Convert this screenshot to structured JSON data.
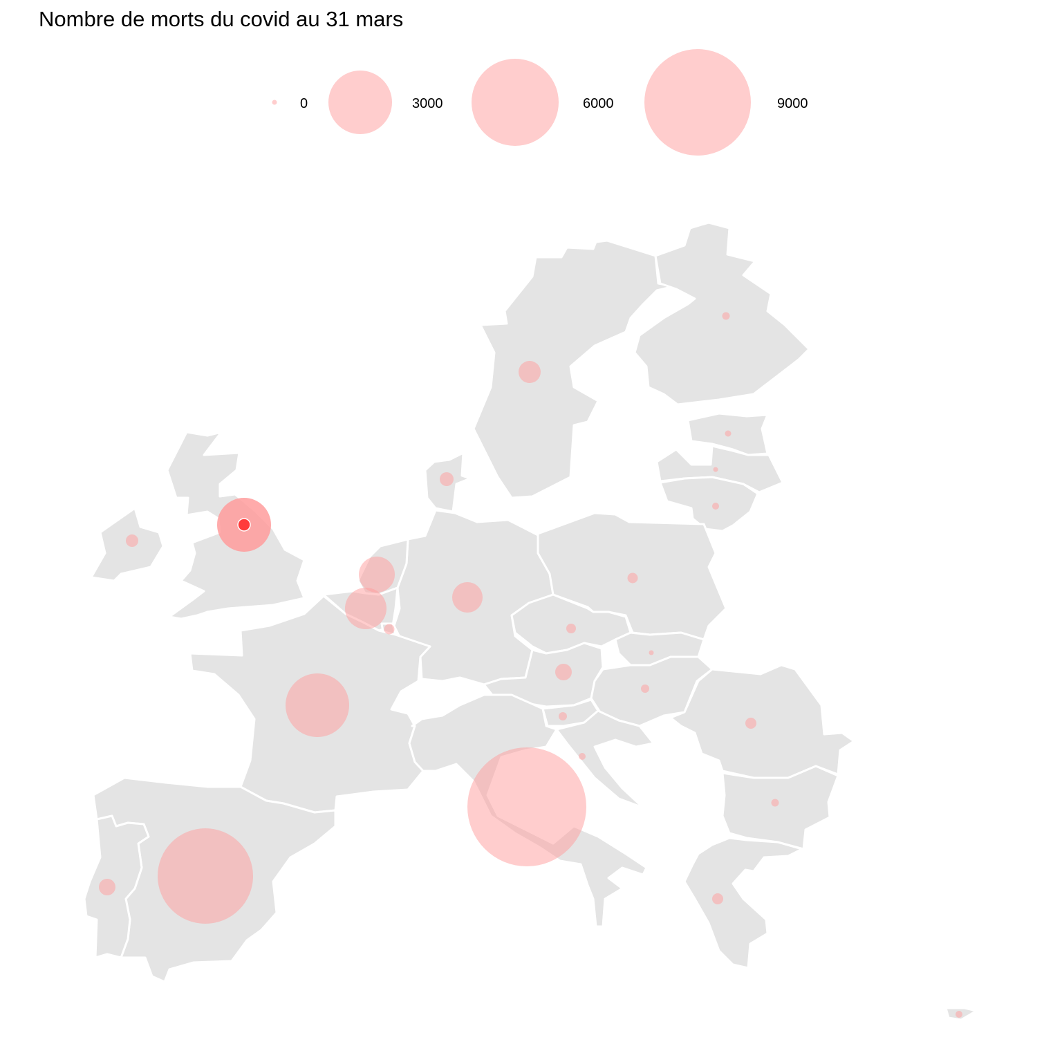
{
  "title": "Nombre de morts du covid au 31 mars",
  "colors": {
    "land": "#e4e4e4",
    "borders": "#ffffff",
    "bubble": "#ff9c9c",
    "legend_bubble": "#ffcdcd",
    "highlight": "#ff3b3b"
  },
  "legend": {
    "items": [
      {
        "value": 0,
        "label": "0"
      },
      {
        "value": 3000,
        "label": "3000"
      },
      {
        "value": 6000,
        "label": "6000"
      },
      {
        "value": 9000,
        "label": "9000"
      }
    ]
  },
  "countries": [
    {
      "name": "Italy",
      "deaths": 11600
    },
    {
      "name": "Spain",
      "deaths": 7716
    },
    {
      "name": "France",
      "deaths": 3523
    },
    {
      "name": "United Kingdom",
      "deaths": 2352
    },
    {
      "name": "Netherlands",
      "deaths": 1039
    },
    {
      "name": "Belgium",
      "deaths": 705
    },
    {
      "name": "Germany",
      "deaths": 775
    },
    {
      "name": "Sweden",
      "deaths": 180
    },
    {
      "name": "Ireland",
      "deaths": 71
    },
    {
      "name": "Portugal",
      "deaths": 160
    },
    {
      "name": "Denmark",
      "deaths": 90
    },
    {
      "name": "Austria",
      "deaths": 108
    },
    {
      "name": "Romania",
      "deaths": 69
    },
    {
      "name": "Poland",
      "deaths": 33
    },
    {
      "name": "Czechia",
      "deaths": 31
    },
    {
      "name": "Greece",
      "deaths": 49
    },
    {
      "name": "Finland",
      "deaths": 13
    },
    {
      "name": "Luxembourg",
      "deaths": 30
    },
    {
      "name": "Hungary",
      "deaths": 15
    },
    {
      "name": "Bulgaria",
      "deaths": 8
    },
    {
      "name": "Slovenia",
      "deaths": 15
    },
    {
      "name": "Croatia",
      "deaths": 6
    },
    {
      "name": "Lithuania",
      "deaths": 7
    },
    {
      "name": "Estonia",
      "deaths": 3
    },
    {
      "name": "Cyprus",
      "deaths": 9
    },
    {
      "name": "Latvia",
      "deaths": 0
    },
    {
      "name": "Slovakia",
      "deaths": 0
    }
  ]
}
